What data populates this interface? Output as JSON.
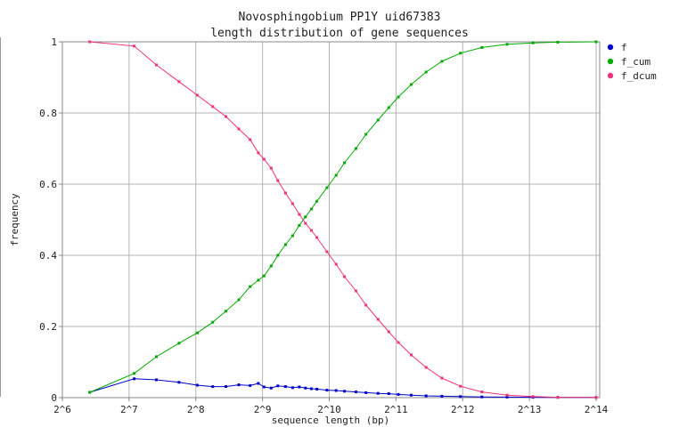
{
  "chart_data": {
    "type": "line",
    "title": "Novosphingobium PP1Y uid67383",
    "subtitle": "length distribution of gene sequences",
    "xlabel": "sequence length (bp)",
    "ylabel": "frequency",
    "x_scale": "log2",
    "xlim": [
      64,
      17000
    ],
    "ylim": [
      0,
      1
    ],
    "x_tick_labels": [
      "2^6",
      "2^7",
      "2^8",
      "2^9",
      "2^10",
      "2^11",
      "2^12",
      "2^13",
      "2^14"
    ],
    "x_tick_values": [
      64,
      128,
      256,
      512,
      1024,
      2048,
      4096,
      8192,
      16384
    ],
    "y_tick_labels": [
      "0",
      "0.2",
      "0.4",
      "0.6",
      "0.8",
      "1"
    ],
    "y_tick_values": [
      0,
      0.2,
      0.4,
      0.6,
      0.8,
      1
    ],
    "grid": true,
    "legend_position": "right",
    "series": [
      {
        "name": "f",
        "color": "#0000cc",
        "points": [
          [
            85,
            0.015
          ],
          [
            135,
            0.053
          ],
          [
            170,
            0.05
          ],
          [
            215,
            0.043
          ],
          [
            260,
            0.035
          ],
          [
            305,
            0.031
          ],
          [
            350,
            0.031
          ],
          [
            400,
            0.036
          ],
          [
            450,
            0.034
          ],
          [
            490,
            0.04
          ],
          [
            520,
            0.03
          ],
          [
            560,
            0.027
          ],
          [
            600,
            0.033
          ],
          [
            650,
            0.031
          ],
          [
            700,
            0.028
          ],
          [
            750,
            0.03
          ],
          [
            800,
            0.027
          ],
          [
            850,
            0.025
          ],
          [
            900,
            0.024
          ],
          [
            1000,
            0.021
          ],
          [
            1100,
            0.02
          ],
          [
            1200,
            0.018
          ],
          [
            1350,
            0.016
          ],
          [
            1500,
            0.014
          ],
          [
            1700,
            0.012
          ],
          [
            1900,
            0.011
          ],
          [
            2100,
            0.009
          ],
          [
            2400,
            0.007
          ],
          [
            2800,
            0.005
          ],
          [
            3300,
            0.004
          ],
          [
            4000,
            0.003
          ],
          [
            5000,
            0.002
          ],
          [
            6500,
            0.0015
          ],
          [
            8500,
            0.001
          ],
          [
            11000,
            0.0008
          ],
          [
            16384,
            0.0005
          ]
        ]
      },
      {
        "name": "f_cum",
        "color": "#00aa00",
        "points": [
          [
            85,
            0.015
          ],
          [
            135,
            0.068
          ],
          [
            170,
            0.115
          ],
          [
            215,
            0.153
          ],
          [
            260,
            0.182
          ],
          [
            305,
            0.212
          ],
          [
            350,
            0.243
          ],
          [
            400,
            0.275
          ],
          [
            450,
            0.312
          ],
          [
            490,
            0.33
          ],
          [
            520,
            0.342
          ],
          [
            560,
            0.37
          ],
          [
            600,
            0.4
          ],
          [
            650,
            0.43
          ],
          [
            700,
            0.455
          ],
          [
            750,
            0.484
          ],
          [
            800,
            0.508
          ],
          [
            850,
            0.53
          ],
          [
            900,
            0.552
          ],
          [
            1000,
            0.59
          ],
          [
            1100,
            0.625
          ],
          [
            1200,
            0.66
          ],
          [
            1350,
            0.7
          ],
          [
            1500,
            0.74
          ],
          [
            1700,
            0.78
          ],
          [
            1900,
            0.815
          ],
          [
            2100,
            0.845
          ],
          [
            2400,
            0.88
          ],
          [
            2800,
            0.915
          ],
          [
            3300,
            0.945
          ],
          [
            4000,
            0.968
          ],
          [
            5000,
            0.984
          ],
          [
            6500,
            0.993
          ],
          [
            8500,
            0.997
          ],
          [
            11000,
            0.999
          ],
          [
            16384,
            1.0
          ]
        ]
      },
      {
        "name": "f_dcum",
        "color": "#ee3377",
        "points": [
          [
            85,
            1.0
          ],
          [
            135,
            0.988
          ],
          [
            170,
            0.935
          ],
          [
            215,
            0.888
          ],
          [
            260,
            0.85
          ],
          [
            305,
            0.818
          ],
          [
            350,
            0.79
          ],
          [
            400,
            0.755
          ],
          [
            450,
            0.725
          ],
          [
            490,
            0.688
          ],
          [
            520,
            0.67
          ],
          [
            560,
            0.645
          ],
          [
            600,
            0.61
          ],
          [
            650,
            0.575
          ],
          [
            700,
            0.545
          ],
          [
            750,
            0.515
          ],
          [
            800,
            0.49
          ],
          [
            850,
            0.47
          ],
          [
            900,
            0.45
          ],
          [
            1000,
            0.41
          ],
          [
            1100,
            0.375
          ],
          [
            1200,
            0.34
          ],
          [
            1350,
            0.3
          ],
          [
            1500,
            0.26
          ],
          [
            1700,
            0.22
          ],
          [
            1900,
            0.185
          ],
          [
            2100,
            0.155
          ],
          [
            2400,
            0.12
          ],
          [
            2800,
            0.085
          ],
          [
            3300,
            0.055
          ],
          [
            4000,
            0.032
          ],
          [
            5000,
            0.016
          ],
          [
            6500,
            0.007
          ],
          [
            8500,
            0.003
          ],
          [
            11000,
            0.001
          ],
          [
            16384,
            0.0005
          ]
        ]
      }
    ]
  }
}
